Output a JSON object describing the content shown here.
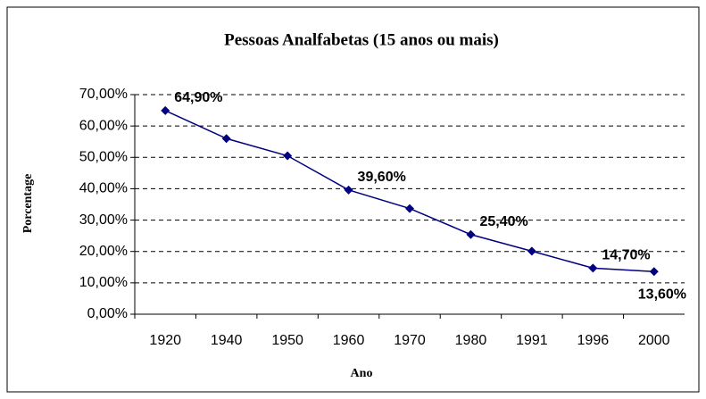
{
  "chart_data": {
    "type": "line",
    "title": "Pessoas Analfabetas (15 anos ou mais)",
    "x_label": "Ano",
    "y_label": "Porcentage",
    "categories": [
      "1920",
      "1940",
      "1950",
      "1960",
      "1970",
      "1980",
      "1991",
      "1996",
      "2000"
    ],
    "series": [
      {
        "name": "Pessoas Analfabetas",
        "color": "#000080",
        "values": [
          64.9,
          56.0,
          50.5,
          39.6,
          33.7,
          25.4,
          20.1,
          14.7,
          13.6
        ],
        "value_labels": [
          "64,90%",
          null,
          null,
          "39,60%",
          null,
          "25,40%",
          null,
          "14,70%",
          "13,60%"
        ]
      }
    ],
    "ylim": [
      0,
      70
    ],
    "yticks": [
      {
        "value": 0,
        "label": "0,00%"
      },
      {
        "value": 10,
        "label": "10,00%"
      },
      {
        "value": 20,
        "label": "20,00%"
      },
      {
        "value": 30,
        "label": "30,00%"
      },
      {
        "value": 40,
        "label": "40,00%"
      },
      {
        "value": 50,
        "label": "50,00%"
      },
      {
        "value": 60,
        "label": "60,00%"
      },
      {
        "value": 70,
        "label": "70,00%"
      }
    ],
    "grid": true
  }
}
